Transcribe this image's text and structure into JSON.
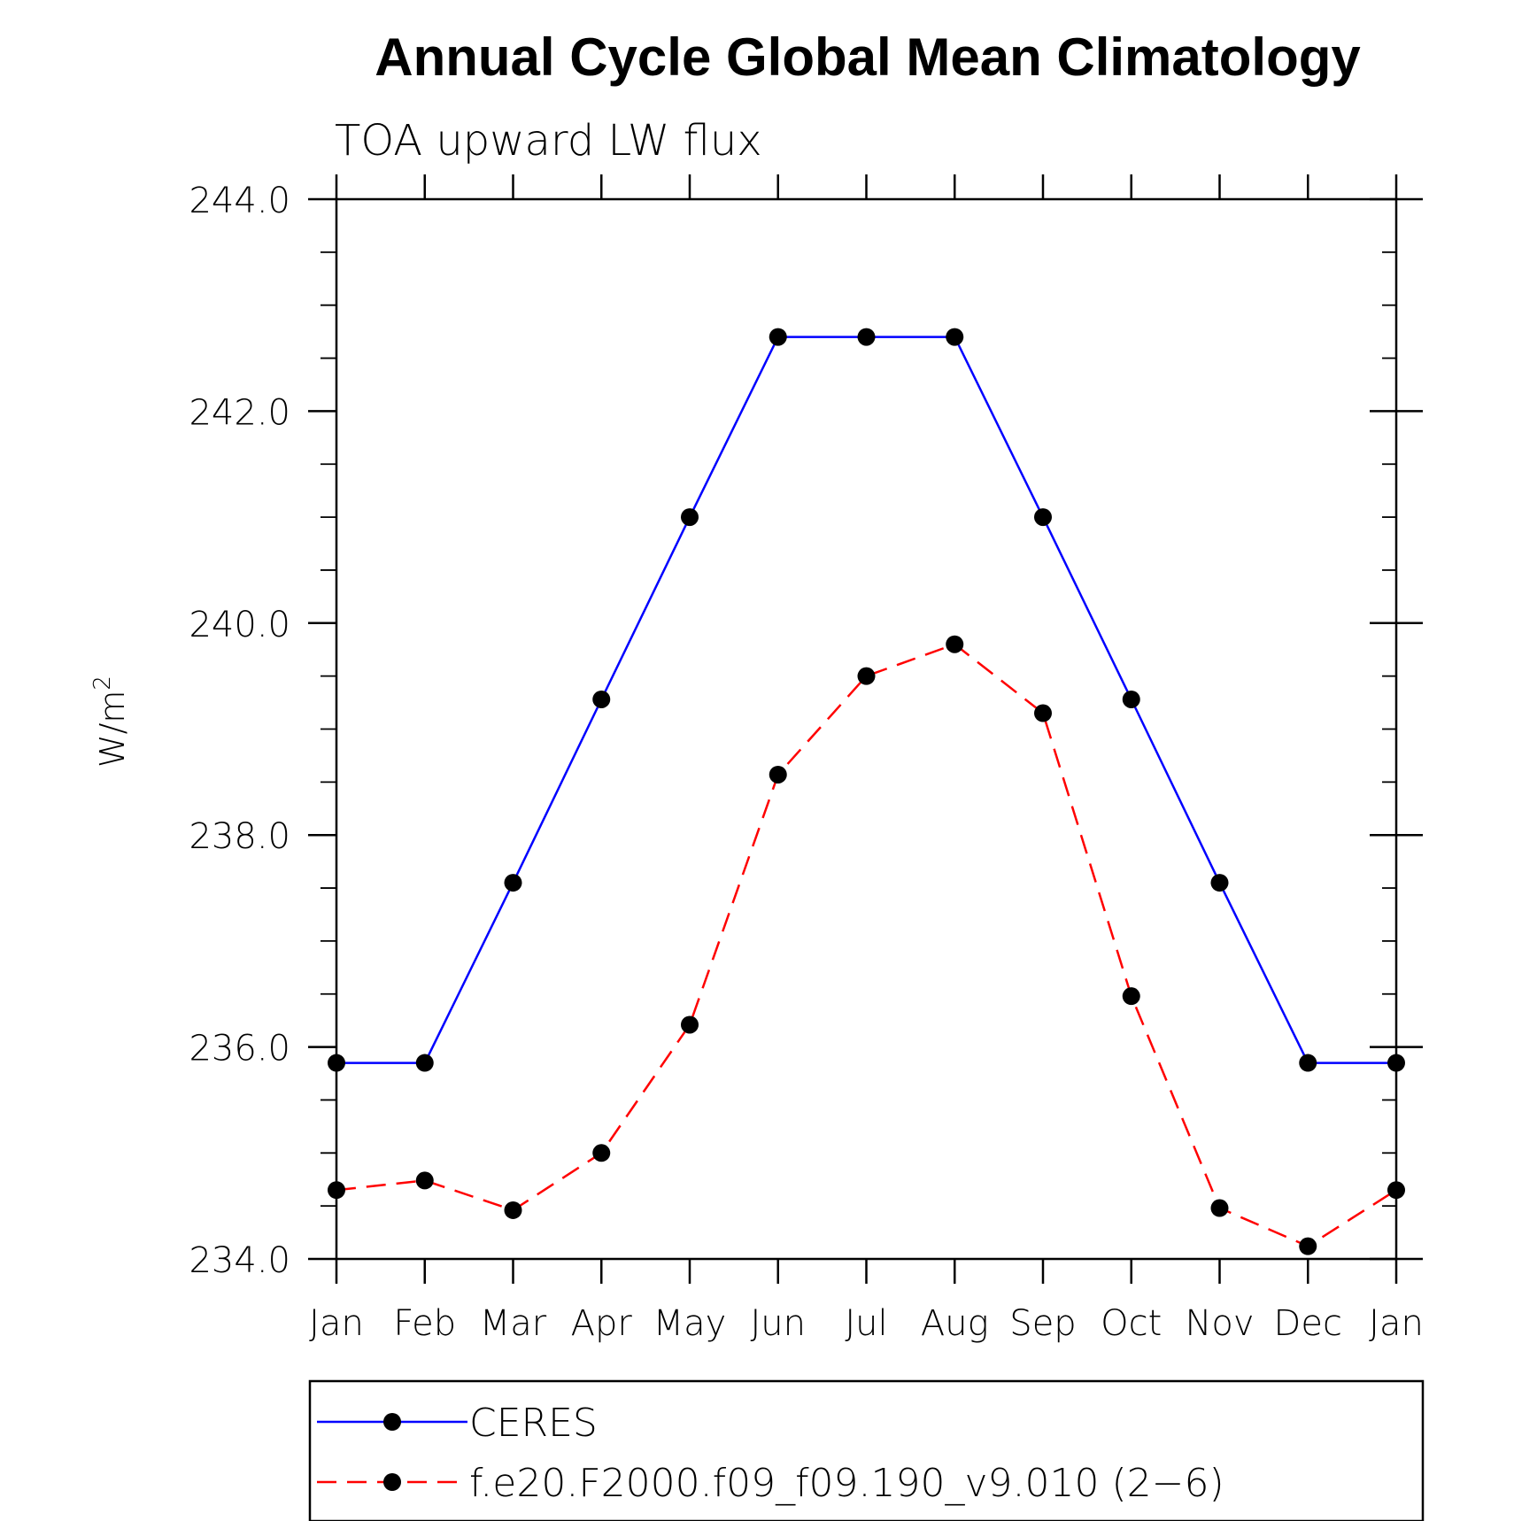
{
  "chart_data": {
    "type": "line",
    "title": "Annual Cycle Global Mean Climatology",
    "subtitle": "TOA upward LW flux",
    "ylabel": "W/m",
    "ylabel_superscript": "2",
    "xlabel": "",
    "categories": [
      "Jan",
      "Feb",
      "Mar",
      "Apr",
      "May",
      "Jun",
      "Jul",
      "Aug",
      "Sep",
      "Oct",
      "Nov",
      "Dec",
      "Jan"
    ],
    "ylim": [
      234.0,
      244.0
    ],
    "yticks": [
      234.0,
      236.0,
      238.0,
      240.0,
      242.0,
      244.0
    ],
    "ytick_labels": [
      "234.0",
      "236.0",
      "238.0",
      "240.0",
      "242.0",
      "244.0"
    ],
    "yminor_step": 0.5,
    "grid": false,
    "legend_position": "bottom",
    "series": [
      {
        "name": "CERES",
        "color": "#0000ff",
        "dash": "solid",
        "marker": "circle",
        "marker_color": "#000000",
        "values": [
          235.85,
          235.85,
          237.55,
          239.28,
          241.0,
          242.7,
          242.7,
          242.7,
          241.0,
          239.28,
          237.55,
          235.85,
          235.85
        ]
      },
      {
        "name": "f.e20.F2000.f09_f09.190_v9.010 (2−6)",
        "color": "#ff0000",
        "dash": "dashed",
        "marker": "circle",
        "marker_color": "#000000",
        "values": [
          234.65,
          234.74,
          234.46,
          235.0,
          236.21,
          238.57,
          239.5,
          239.8,
          239.15,
          236.48,
          234.48,
          234.12,
          234.65
        ]
      }
    ]
  }
}
